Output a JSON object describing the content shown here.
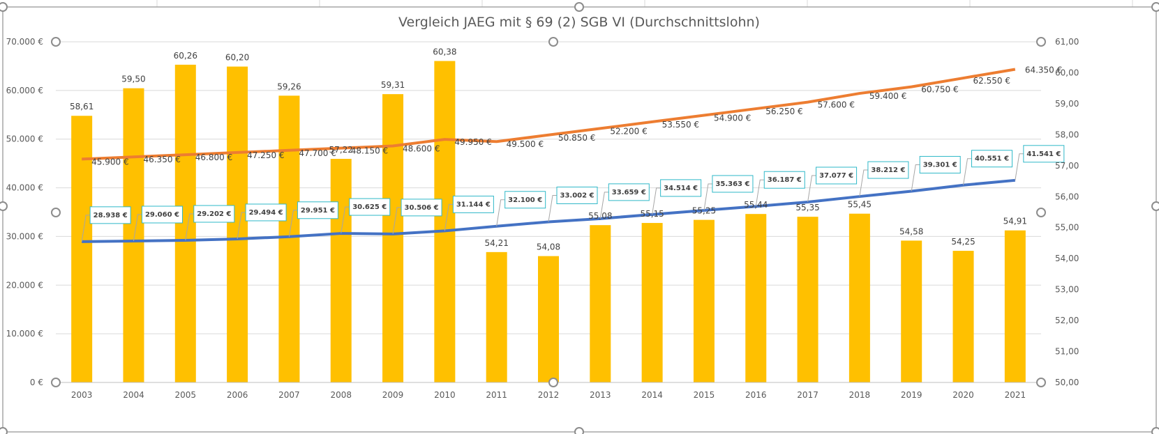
{
  "chart_data": {
    "type": "bar+line",
    "title": "Vergleich JAEG mit § 69 (2) SGB VI (Durchschnittslohn)",
    "categories": [
      "2003",
      "2004",
      "2005",
      "2006",
      "2007",
      "2008",
      "2009",
      "2010",
      "2011",
      "2012",
      "2013",
      "2014",
      "2015",
      "2016",
      "2017",
      "2018",
      "2019",
      "2020",
      "2021"
    ],
    "left_axis": {
      "min": 0,
      "max": 70000,
      "step": 10000,
      "tick_labels": [
        "0 €",
        "10.000 €",
        "20.000 €",
        "30.000 €",
        "40.000 €",
        "50.000 €",
        "60.000 €",
        "70.000 €"
      ]
    },
    "right_axis": {
      "min": 50,
      "max": 61,
      "step": 1,
      "tick_labels": [
        "50,00",
        "51,00",
        "52,00",
        "53,00",
        "54,00",
        "55,00",
        "56,00",
        "57,00",
        "58,00",
        "59,00",
        "60,00",
        "61,00"
      ]
    },
    "grid": true,
    "legend": "none",
    "series": [
      {
        "type": "bar",
        "axis": "right",
        "color": "#FFC000",
        "values": [
          58.61,
          59.5,
          60.26,
          60.2,
          59.26,
          57.22,
          59.31,
          60.38,
          54.21,
          54.08,
          55.08,
          55.15,
          55.25,
          55.44,
          55.35,
          55.45,
          54.58,
          54.25,
          54.91
        ],
        "labels": [
          "58,61",
          "59,50",
          "60,26",
          "60,20",
          "59,26",
          "57,22",
          "59,31",
          "60,38",
          "54,21",
          "54,08",
          "55,08",
          "55,15",
          "55,25",
          "55,44",
          "55,35",
          "55,45",
          "54,58",
          "54,25",
          "54,91"
        ]
      },
      {
        "type": "line",
        "axis": "left",
        "color": "#ED7D31",
        "values": [
          45900,
          46350,
          46800,
          47250,
          47700,
          48150,
          48600,
          49950,
          49500,
          50850,
          52200,
          53550,
          54900,
          56250,
          57600,
          59400,
          60750,
          62550,
          64350
        ],
        "labels": [
          "45.900 €",
          "46.350 €",
          "46.800 €",
          "47.250 €",
          "47.700 €",
          "48.150 €",
          "48.600 €",
          "49.950 €",
          "49.500 €",
          "50.850 €",
          "52.200 €",
          "53.550 €",
          "54.900 €",
          "56.250 €",
          "57.600 €",
          "59.400 €",
          "60.750 €",
          "62.550 €",
          "64.350 €"
        ]
      },
      {
        "type": "line",
        "axis": "left",
        "color": "#4472C4",
        "values": [
          28938,
          29060,
          29202,
          29494,
          29951,
          30625,
          30506,
          31144,
          32100,
          33002,
          33659,
          34514,
          35363,
          36187,
          37077,
          38212,
          39301,
          40551,
          41541
        ],
        "labels": [
          "28.938 €",
          "29.060 €",
          "29.202 €",
          "29.494 €",
          "29.951 €",
          "30.625 €",
          "30.506 €",
          "31.144 €",
          "32.100 €",
          "33.002 €",
          "33.659 €",
          "34.514 €",
          "35.363 €",
          "36.187 €",
          "37.077 €",
          "38.212 €",
          "39.301 €",
          "40.551 €",
          "41.541 €"
        ]
      }
    ]
  }
}
